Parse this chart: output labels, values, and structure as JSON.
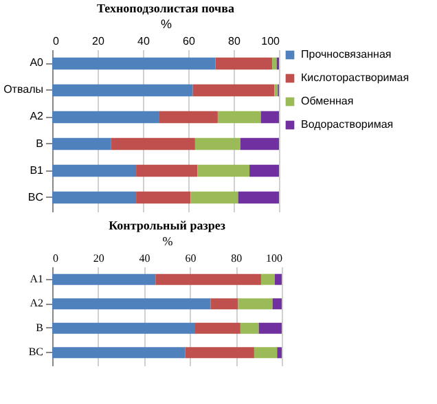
{
  "chart_data": [
    {
      "type": "bar",
      "orientation": "horizontal",
      "stacked": true,
      "title": "Техноподзолистая почва",
      "xlabel": "%",
      "categories": [
        "A0",
        "Отвалы",
        "A2",
        "B",
        "B1",
        "BC"
      ],
      "xlim": [
        0,
        100
      ],
      "xticks": [
        0,
        20,
        40,
        60,
        80,
        100
      ],
      "grid": "x",
      "legend": "right",
      "series": [
        {
          "name": "Прочносвязанная",
          "color": "#4f81bd",
          "values": [
            72,
            62,
            47,
            26,
            37,
            37
          ]
        },
        {
          "name": "Кислоторастворимая",
          "color": "#c0504d",
          "values": [
            25,
            36,
            26,
            37,
            27,
            24
          ]
        },
        {
          "name": "Обменная",
          "color": "#9bbb59",
          "values": [
            2,
            1.5,
            19,
            20,
            23,
            21
          ]
        },
        {
          "name": "Водорастворимая",
          "color": "#7030a0",
          "values": [
            1,
            0.5,
            8,
            17,
            13,
            18
          ]
        }
      ]
    },
    {
      "type": "bar",
      "orientation": "horizontal",
      "stacked": true,
      "title": "Контрольный разрез",
      "xlabel": "%",
      "categories": [
        "A1",
        "A2",
        "B",
        "BC"
      ],
      "xlim": [
        0,
        100
      ],
      "xticks": [
        0,
        20,
        40,
        60,
        80,
        100
      ],
      "grid": "x",
      "legend": false,
      "series": [
        {
          "color": "#4f81bd",
          "values": [
            45,
            69,
            62,
            58
          ]
        },
        {
          "color": "#c0504d",
          "values": [
            46,
            12,
            20,
            30
          ]
        },
        {
          "color": "#9bbb59",
          "values": [
            6,
            15,
            8,
            10
          ]
        },
        {
          "color": "#7030a0",
          "values": [
            3,
            4,
            10,
            2
          ]
        }
      ]
    }
  ]
}
